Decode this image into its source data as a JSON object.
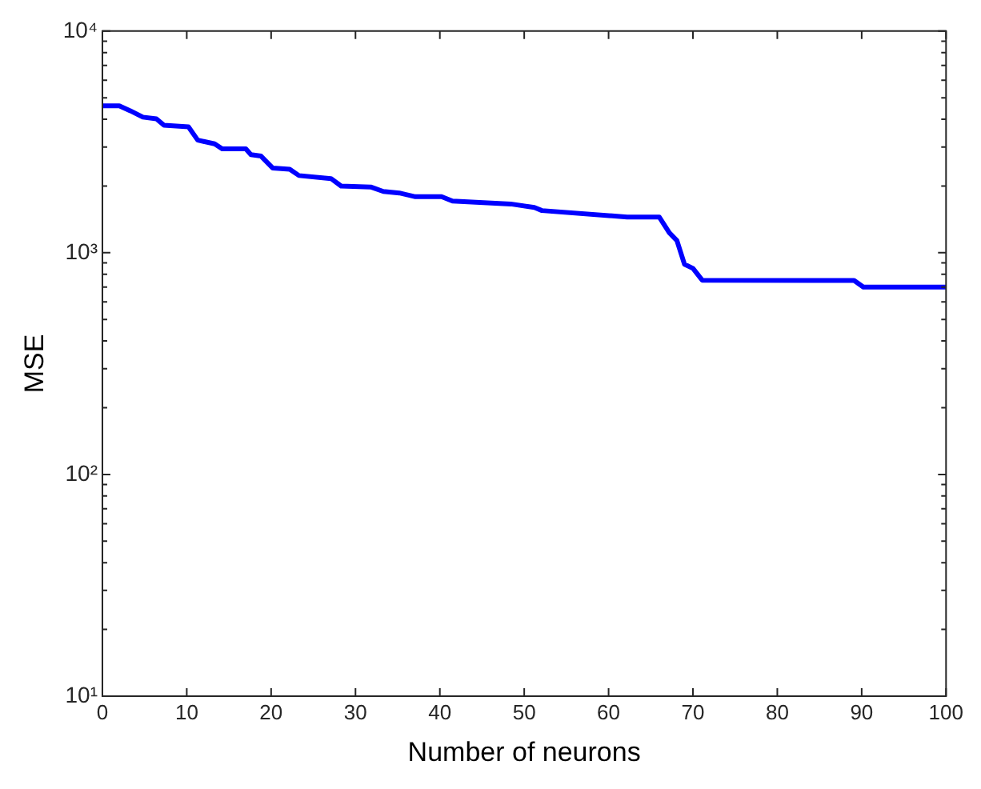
{
  "chart_data": {
    "type": "line",
    "xlabel": "Number of neurons",
    "ylabel": "MSE",
    "log": "y",
    "grid": false,
    "legend": false,
    "marker": "none",
    "line_style": "solid",
    "xlim": [
      0,
      100
    ],
    "xticks": [
      0,
      10,
      20,
      30,
      40,
      50,
      60,
      70,
      80,
      90,
      100
    ],
    "ylim": [
      10,
      10000
    ],
    "yticks": [
      {
        "value": 10,
        "label": "10¹"
      },
      {
        "value": 20,
        "label": null
      },
      {
        "value": 30,
        "label": null
      },
      {
        "value": 40,
        "label": null
      },
      {
        "value": 50,
        "label": null
      },
      {
        "value": 60,
        "label": null
      },
      {
        "value": 70,
        "label": null
      },
      {
        "value": 80,
        "label": null
      },
      {
        "value": 90,
        "label": null
      },
      {
        "value": 100,
        "label": "10²"
      },
      {
        "value": 200,
        "label": null
      },
      {
        "value": 300,
        "label": null
      },
      {
        "value": 400,
        "label": null
      },
      {
        "value": 500,
        "label": null
      },
      {
        "value": 600,
        "label": null
      },
      {
        "value": 700,
        "label": null
      },
      {
        "value": 800,
        "label": null
      },
      {
        "value": 900,
        "label": null
      },
      {
        "value": 1000,
        "label": "10³"
      },
      {
        "value": 2000,
        "label": null
      },
      {
        "value": 3000,
        "label": null
      },
      {
        "value": 4000,
        "label": null
      },
      {
        "value": 5000,
        "label": null
      },
      {
        "value": 6000,
        "label": null
      },
      {
        "value": 7000,
        "label": null
      },
      {
        "value": 8000,
        "label": null
      },
      {
        "value": 9000,
        "label": null
      },
      {
        "value": 10000,
        "label": "10⁴"
      }
    ],
    "series": [
      {
        "color": "#0000ff",
        "x": [
          0,
          2,
          3.3,
          4.8,
          6.4,
          7.3,
          10.2,
          11.3,
          13.3,
          14.2,
          17,
          17.6,
          18.8,
          20.2,
          22.2,
          23.3,
          27.1,
          28.3,
          31.8,
          33.3,
          35.2,
          37.1,
          40.2,
          41.5,
          48.4,
          51.2,
          52.1,
          62.2,
          66,
          67.2,
          68.1,
          69,
          70,
          71.1,
          89.1,
          90.2,
          100
        ],
        "values": [
          4600,
          4600,
          4370,
          4090,
          4020,
          3760,
          3700,
          3220,
          3100,
          2940,
          2940,
          2770,
          2730,
          2410,
          2380,
          2230,
          2160,
          2000,
          1980,
          1890,
          1860,
          1790,
          1790,
          1710,
          1660,
          1600,
          1550,
          1450,
          1450,
          1230,
          1135,
          887,
          850,
          752,
          750,
          700,
          700
        ]
      }
    ]
  }
}
